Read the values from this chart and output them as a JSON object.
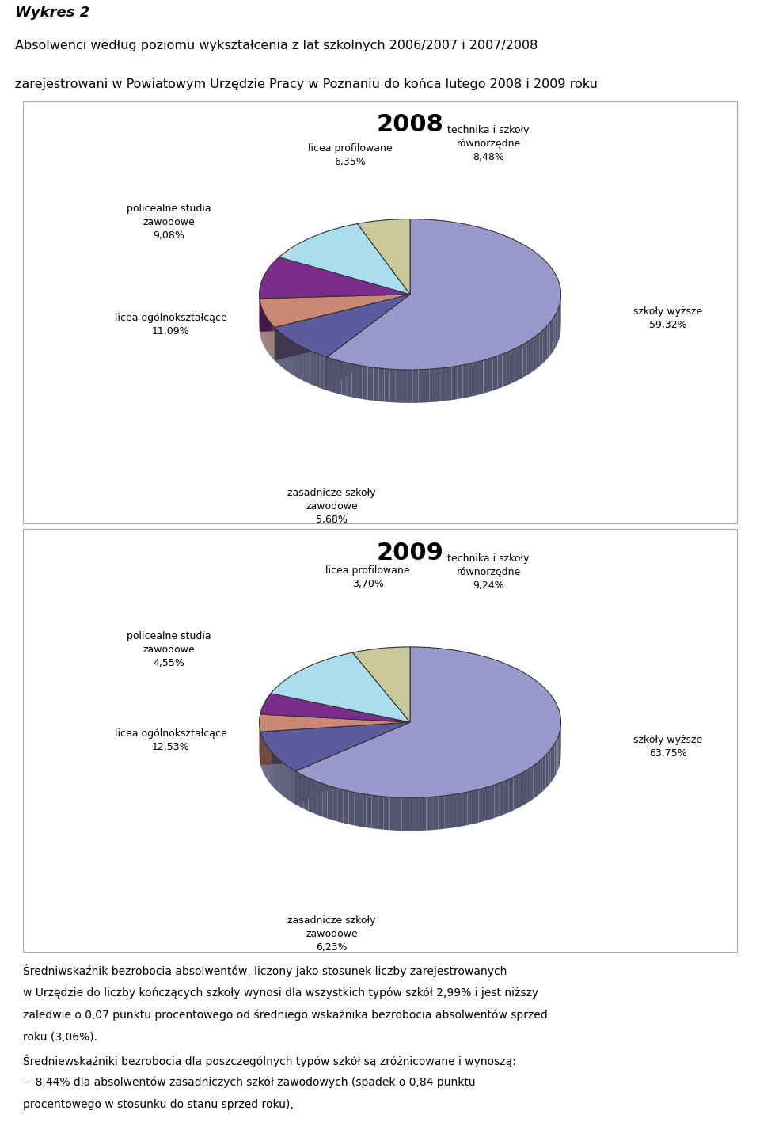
{
  "title_italic": "Wykres 2",
  "title_line2": "Absolwenci według poziomu wykształcenia z lat szkolnych 2006/2007 i 2007/2008",
  "title_line3": "zarejestrowani w Powiatowym Urzędzie Pracy w Poznaniu do końca lutego 2008 i 2009 roku",
  "chart2008_title": "2008",
  "chart2008_values": [
    59.32,
    8.48,
    6.35,
    9.08,
    11.09,
    5.68
  ],
  "chart2008_colors": [
    "#9999cc",
    "#5b5b9e",
    "#cc8877",
    "#7b2d8b",
    "#aaddee",
    "#c8c89a",
    "#8a9a7a",
    "#bc8f7f"
  ],
  "chart2009_title": "2009",
  "chart2009_values": [
    63.75,
    9.24,
    3.7,
    4.55,
    12.53,
    6.23
  ],
  "chart2009_colors": [
    "#9999cc",
    "#5b5b9e",
    "#cc8877",
    "#7b2d8b",
    "#aaddee",
    "#c8c89a",
    "#8a9a7a",
    "#bc8f7f"
  ],
  "footer_lines": [
    "Średniwskaźnik bezrobocia absolwentów, liczony jako stosunek liczby zarejestrowanych",
    "w Urzędzie do liczby kończących szkoły wynosi dla wszystkich typów szkół 2,99% i jest niższy",
    "zaledwie o 0,07 punktu procentowego od średniego wskaźnika bezrobocia absolwentów sprzed",
    "roku (3,06%).",
    "Średniewskaźniki bezrobocia dla poszczególnych typów szkół są zróżnicowane i wynoszą:",
    "–  8,44% dla absolwentów zasadniczych szkół zawodowych (spadek o 0,84 punktu",
    "procentowego w stosunku do stanu sprzed roku),"
  ],
  "bg_color": "#ffffff",
  "box_edge_color": "#aaaaaa",
  "label_fontsize": 9,
  "title_fontsize": 22,
  "depth_3d": 0.18,
  "yscale": 0.5
}
